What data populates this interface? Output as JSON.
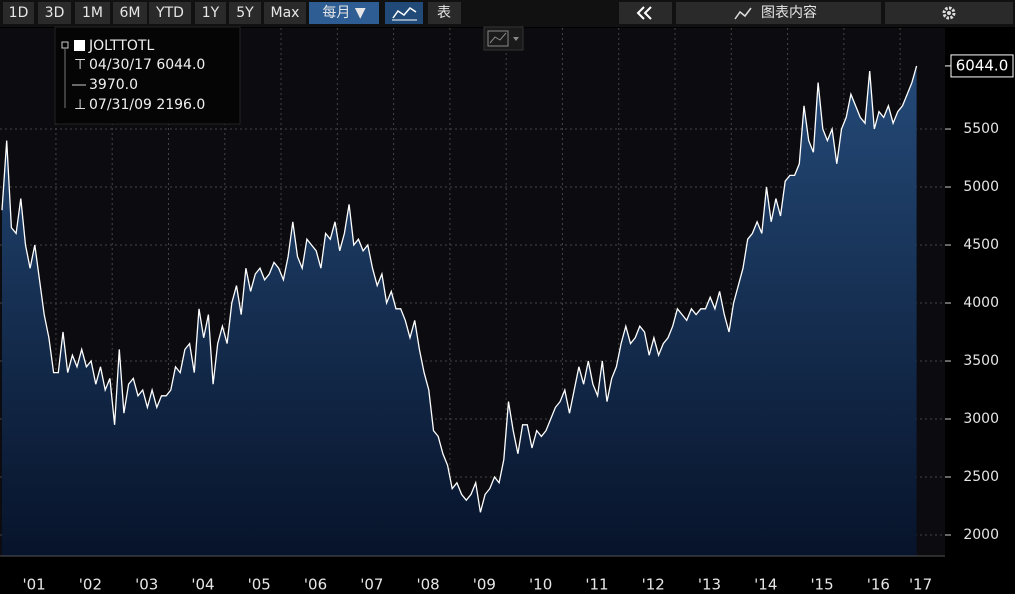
{
  "toolbar": {
    "periods": [
      "1D",
      "3D",
      "1M",
      "6M",
      "YTD",
      "1Y",
      "5Y",
      "Max"
    ],
    "frequency": "每月 ▼",
    "table": "表",
    "panel": "图表内容"
  },
  "chart_data": {
    "type": "area",
    "legend": {
      "name": "JOLTTOTL",
      "high": "04/30/17 6044.0",
      "average": "3970.0",
      "low": "07/31/09 2196.0"
    },
    "last_label": "6044.0",
    "color": "#ffffff",
    "fill_top": "#244a78",
    "fill_bottom": "#07132a",
    "ylim": [
      1819,
      6371
    ],
    "yticks": [
      2000,
      2500,
      3000,
      3500,
      4000,
      4500,
      5000,
      5500
    ],
    "grid": true,
    "categories": [
      null,
      null,
      null,
      null,
      null,
      null,
      "'01",
      null,
      null,
      null,
      null,
      null,
      null,
      null,
      null,
      null,
      null,
      null,
      "'02",
      null,
      null,
      null,
      null,
      null,
      null,
      null,
      null,
      null,
      null,
      null,
      "'03",
      null,
      null,
      null,
      null,
      null,
      null,
      null,
      null,
      null,
      null,
      null,
      "'04",
      null,
      null,
      null,
      null,
      null,
      null,
      null,
      null,
      null,
      null,
      null,
      "'05",
      null,
      null,
      null,
      null,
      null,
      null,
      null,
      null,
      null,
      null,
      null,
      "'06",
      null,
      null,
      null,
      null,
      null,
      null,
      null,
      null,
      null,
      null,
      null,
      "'07",
      null,
      null,
      null,
      null,
      null,
      null,
      null,
      null,
      null,
      null,
      null,
      "'08",
      null,
      null,
      null,
      null,
      null,
      null,
      null,
      null,
      null,
      null,
      null,
      "'09",
      null,
      null,
      null,
      null,
      null,
      null,
      null,
      null,
      null,
      null,
      null,
      "'10",
      null,
      null,
      null,
      null,
      null,
      null,
      null,
      null,
      null,
      null,
      null,
      "'11",
      null,
      null,
      null,
      null,
      null,
      null,
      null,
      null,
      null,
      null,
      null,
      "'12",
      null,
      null,
      null,
      null,
      null,
      null,
      null,
      null,
      null,
      null,
      null,
      "'13",
      null,
      null,
      null,
      null,
      null,
      null,
      null,
      null,
      null,
      null,
      null,
      "'14",
      null,
      null,
      null,
      null,
      null,
      null,
      null,
      null,
      null,
      null,
      null,
      "'15",
      null,
      null,
      null,
      null,
      null,
      null,
      null,
      null,
      null,
      null,
      null,
      "'16",
      null,
      null,
      null,
      null,
      null,
      null,
      null,
      null,
      "'17"
    ],
    "values": [
      4800,
      5400,
      4650,
      4600,
      4900,
      4500,
      4300,
      4500,
      4200,
      3900,
      3700,
      3400,
      3400,
      3750,
      3400,
      3550,
      3450,
      3600,
      3450,
      3500,
      3300,
      3450,
      3250,
      3350,
      2950,
      3600,
      3050,
      3300,
      3350,
      3200,
      3250,
      3100,
      3250,
      3100,
      3200,
      3200,
      3250,
      3450,
      3400,
      3600,
      3650,
      3400,
      3950,
      3700,
      3900,
      3300,
      3650,
      3800,
      3650,
      4000,
      4150,
      3900,
      4300,
      4100,
      4250,
      4300,
      4200,
      4250,
      4350,
      4300,
      4200,
      4400,
      4700,
      4400,
      4300,
      4550,
      4500,
      4450,
      4300,
      4600,
      4550,
      4700,
      4450,
      4600,
      4850,
      4500,
      4550,
      4450,
      4500,
      4300,
      4150,
      4250,
      4000,
      4100,
      3950,
      3950,
      3850,
      3700,
      3850,
      3600,
      3400,
      3250,
      2900,
      2850,
      2700,
      2600,
      2400,
      2450,
      2350,
      2300,
      2350,
      2450,
      2196,
      2350,
      2400,
      2500,
      2450,
      2650,
      3150,
      2900,
      2700,
      2950,
      2950,
      2750,
      2900,
      2850,
      2900,
      3000,
      3100,
      3150,
      3250,
      3050,
      3250,
      3450,
      3300,
      3500,
      3300,
      3200,
      3500,
      3150,
      3350,
      3450,
      3650,
      3800,
      3650,
      3700,
      3800,
      3750,
      3550,
      3700,
      3550,
      3650,
      3700,
      3800,
      3950,
      3900,
      3850,
      3950,
      3900,
      3950,
      3950,
      4050,
      3950,
      4100,
      3900,
      3750,
      4000,
      4150,
      4300,
      4550,
      4600,
      4700,
      4600,
      5000,
      4700,
      4900,
      4750,
      5050,
      5100,
      5100,
      5200,
      5700,
      5400,
      5300,
      5900,
      5500,
      5400,
      5500,
      5200,
      5500,
      5600,
      5800,
      5700,
      5600,
      5550,
      6000,
      5500,
      5650,
      5600,
      5700,
      5550,
      5650,
      5700,
      5800,
      5900,
      6044
    ]
  }
}
